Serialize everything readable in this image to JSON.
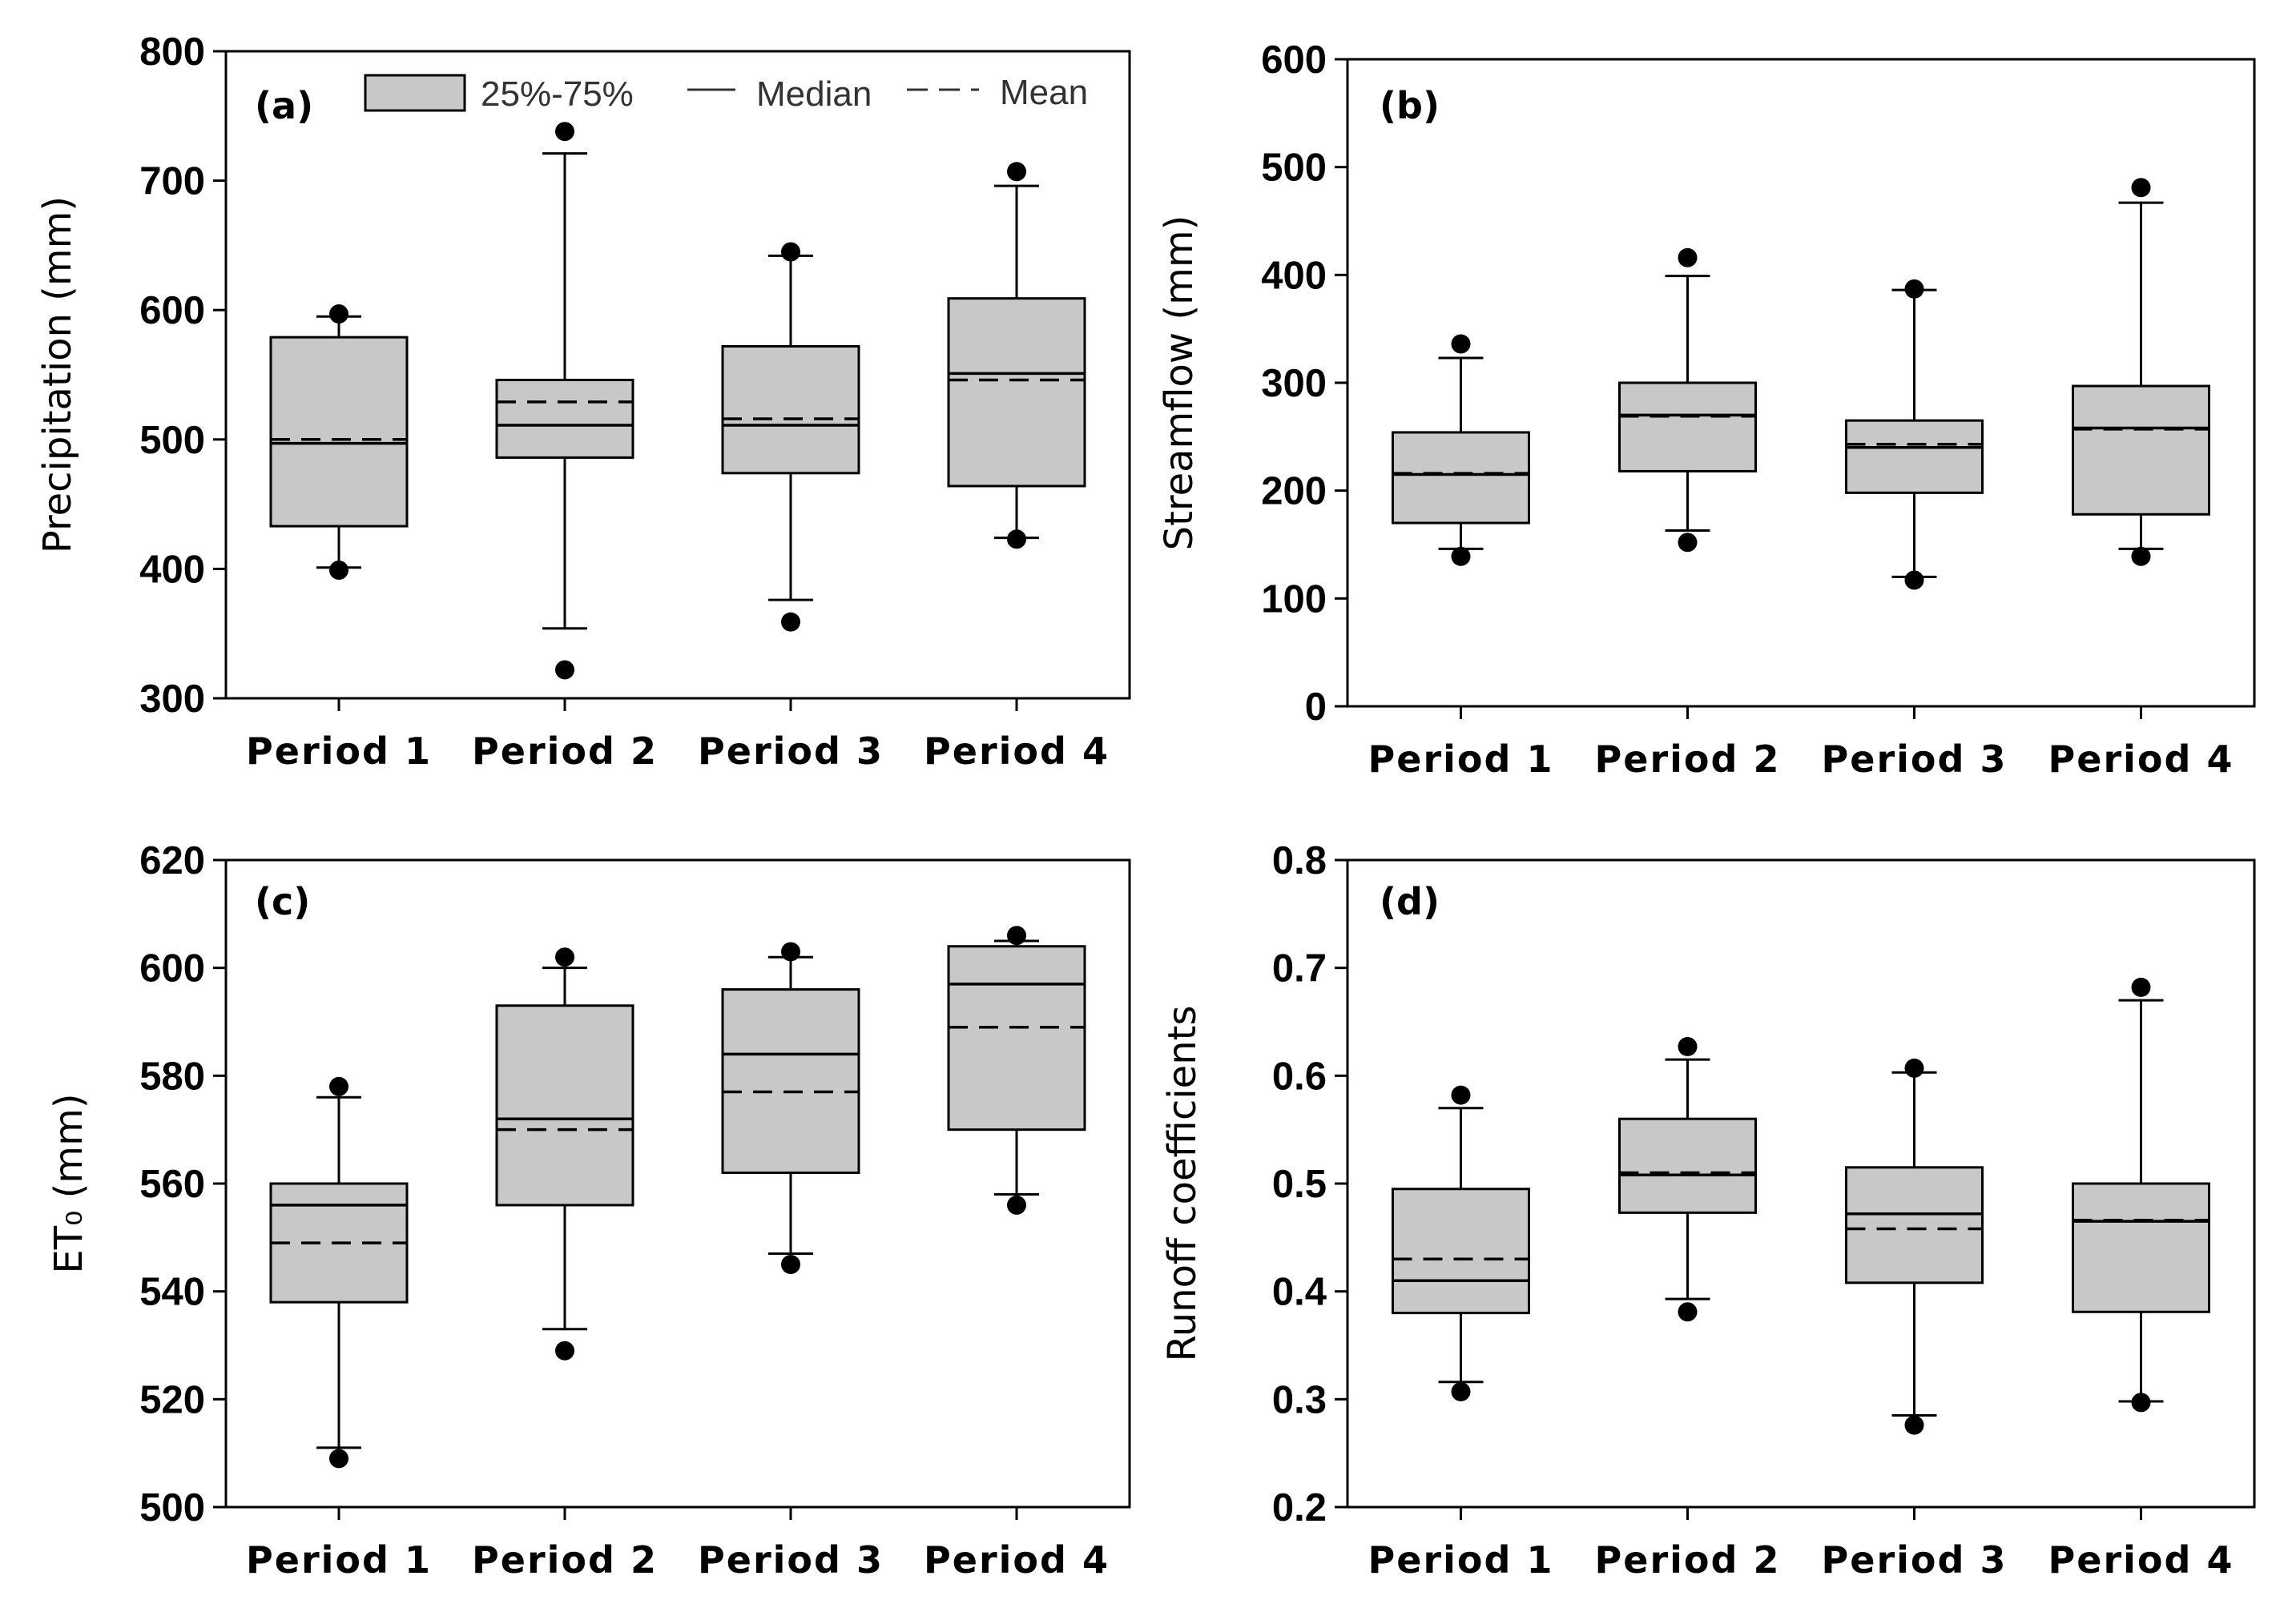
{
  "figure": {
    "legend": {
      "iqr": "25%-75%",
      "median": "Median",
      "mean": "Mean"
    }
  },
  "chart_data": [
    {
      "type": "box",
      "panel": "(a)",
      "ylabel": "Precipitation (mm)",
      "ylim": [
        300,
        800
      ],
      "yticks": [
        300,
        400,
        500,
        600,
        700,
        800
      ],
      "categories": [
        "Period 1",
        "Period 2",
        "Period 3",
        "Period 4"
      ],
      "boxes": [
        {
          "q1": 433,
          "median": 497,
          "mean": 500,
          "q3": 579,
          "whisker_low": 401,
          "whisker_high": 595,
          "outliers": [
            399,
            597
          ]
        },
        {
          "q1": 486,
          "median": 511,
          "mean": 529,
          "q3": 546,
          "whisker_low": 354,
          "whisker_high": 721,
          "outliers": [
            322,
            738
          ]
        },
        {
          "q1": 474,
          "median": 511,
          "mean": 516,
          "q3": 572,
          "whisker_low": 376,
          "whisker_high": 642,
          "outliers": [
            359,
            645
          ]
        },
        {
          "q1": 464,
          "median": 551,
          "mean": 546,
          "q3": 609,
          "whisker_low": 424,
          "whisker_high": 696,
          "outliers": [
            423,
            707
          ]
        }
      ]
    },
    {
      "type": "box",
      "panel": "(b)",
      "ylabel": "Streamflow (mm)",
      "ylim": [
        0,
        600
      ],
      "yticks": [
        0,
        100,
        200,
        300,
        400,
        500,
        600
      ],
      "categories": [
        "Period 1",
        "Period 2",
        "Period 3",
        "Period 4"
      ],
      "boxes": [
        {
          "q1": 170,
          "median": 215,
          "mean": 216,
          "q3": 254,
          "whisker_low": 146,
          "whisker_high": 323,
          "outliers": [
            139,
            336
          ]
        },
        {
          "q1": 218,
          "median": 270,
          "mean": 269,
          "q3": 300,
          "whisker_low": 163,
          "whisker_high": 399,
          "outliers": [
            152,
            416
          ]
        },
        {
          "q1": 198,
          "median": 240,
          "mean": 243,
          "q3": 265,
          "whisker_low": 120,
          "whisker_high": 386,
          "outliers": [
            117,
            387
          ]
        },
        {
          "q1": 178,
          "median": 258,
          "mean": 257,
          "q3": 297,
          "whisker_low": 146,
          "whisker_high": 467,
          "outliers": [
            139,
            481
          ]
        }
      ]
    },
    {
      "type": "box",
      "panel": "(c)",
      "ylabel": "ET₀ (mm)",
      "ylim": [
        500,
        620
      ],
      "yticks": [
        500,
        520,
        540,
        560,
        580,
        600,
        620
      ],
      "categories": [
        "Period 1",
        "Period 2",
        "Period 3",
        "Period 4"
      ],
      "boxes": [
        {
          "q1": 538,
          "median": 556,
          "mean": 549,
          "q3": 560,
          "whisker_low": 511,
          "whisker_high": 576,
          "outliers": [
            509,
            578
          ]
        },
        {
          "q1": 556,
          "median": 572,
          "mean": 570,
          "q3": 593,
          "whisker_low": 533,
          "whisker_high": 600,
          "outliers": [
            529,
            602
          ]
        },
        {
          "q1": 562,
          "median": 584,
          "mean": 577,
          "q3": 596,
          "whisker_low": 547,
          "whisker_high": 602,
          "outliers": [
            545,
            603
          ]
        },
        {
          "q1": 570,
          "median": 597,
          "mean": 589,
          "q3": 604,
          "whisker_low": 558,
          "whisker_high": 605,
          "outliers": [
            556,
            606
          ]
        }
      ]
    },
    {
      "type": "box",
      "panel": "(d)",
      "ylabel": "Runoff coefficients",
      "ylim": [
        0.2,
        0.8
      ],
      "yticks": [
        0.2,
        0.3,
        0.4,
        0.5,
        0.6,
        0.7,
        0.8
      ],
      "categories": [
        "Period 1",
        "Period 2",
        "Period 3",
        "Period 4"
      ],
      "boxes": [
        {
          "q1": 0.38,
          "median": 0.41,
          "mean": 0.43,
          "q3": 0.495,
          "whisker_low": 0.316,
          "whisker_high": 0.57,
          "outliers": [
            0.307,
            0.582
          ]
        },
        {
          "q1": 0.473,
          "median": 0.508,
          "mean": 0.51,
          "q3": 0.56,
          "whisker_low": 0.393,
          "whisker_high": 0.615,
          "outliers": [
            0.381,
            0.627
          ]
        },
        {
          "q1": 0.408,
          "median": 0.472,
          "mean": 0.458,
          "q3": 0.515,
          "whisker_low": 0.285,
          "whisker_high": 0.603,
          "outliers": [
            0.276,
            0.607
          ]
        },
        {
          "q1": 0.381,
          "median": 0.465,
          "mean": 0.466,
          "q3": 0.5,
          "whisker_low": 0.298,
          "whisker_high": 0.67,
          "outliers": [
            0.297,
            0.682
          ]
        }
      ]
    }
  ]
}
